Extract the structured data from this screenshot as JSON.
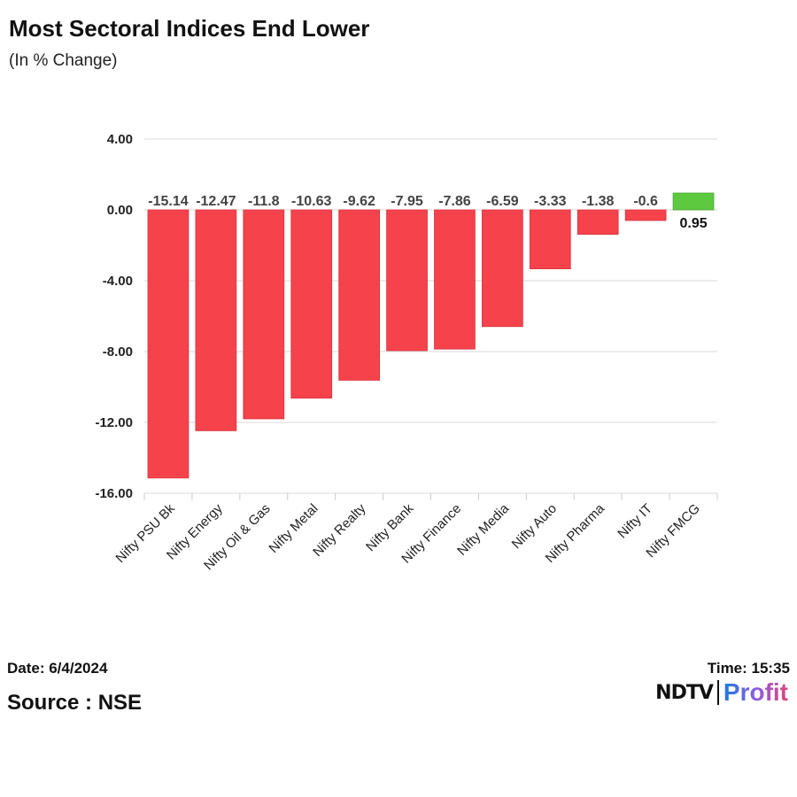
{
  "header": {
    "title": "Most Sectoral Indices End Lower",
    "subtitle": "(In % Change)"
  },
  "footer": {
    "date": "Date: 6/4/2024",
    "time": "Time: 15:35",
    "source": "Source : NSE",
    "logo": "NDTV Profit",
    "logo_parts": [
      "NDTV",
      "Profit"
    ]
  },
  "chart_data": {
    "type": "bar",
    "title": "Most Sectoral Indices End Lower",
    "subtitle": "(In % Change)",
    "categories": [
      "Nifty PSU Bk",
      "Nifty Energy",
      "Nifty Oil & Gas",
      "Nifty Metal",
      "Nifty Realty",
      "Nifty Bank",
      "Nifty Finance",
      "Nifty Media",
      "Nifty Auto",
      "Nifty Pharma",
      "Nifty IT",
      "Nifty FMCG"
    ],
    "values": [
      -15.14,
      -12.47,
      -11.8,
      -10.63,
      -9.62,
      -7.95,
      -7.86,
      -6.59,
      -3.33,
      -1.38,
      -0.6,
      0.95
    ],
    "data_labels": [
      "-15.14",
      "-12.47",
      "-11.8",
      "-10.63",
      "-9.62",
      "-7.95",
      "-7.86",
      "-6.59",
      "-3.33",
      "-1.38",
      "-0.6",
      "0.95"
    ],
    "ylim": [
      -16,
      4
    ],
    "yticks": [
      4,
      0,
      -4,
      -8,
      -12,
      -16
    ],
    "ytick_labels": [
      "4.00",
      "0.00",
      "-4.00",
      "-8.00",
      "-12.00",
      "-16.00"
    ],
    "grid": true,
    "colors": {
      "negative": "#f5424b",
      "positive": "#5cc93f"
    }
  }
}
